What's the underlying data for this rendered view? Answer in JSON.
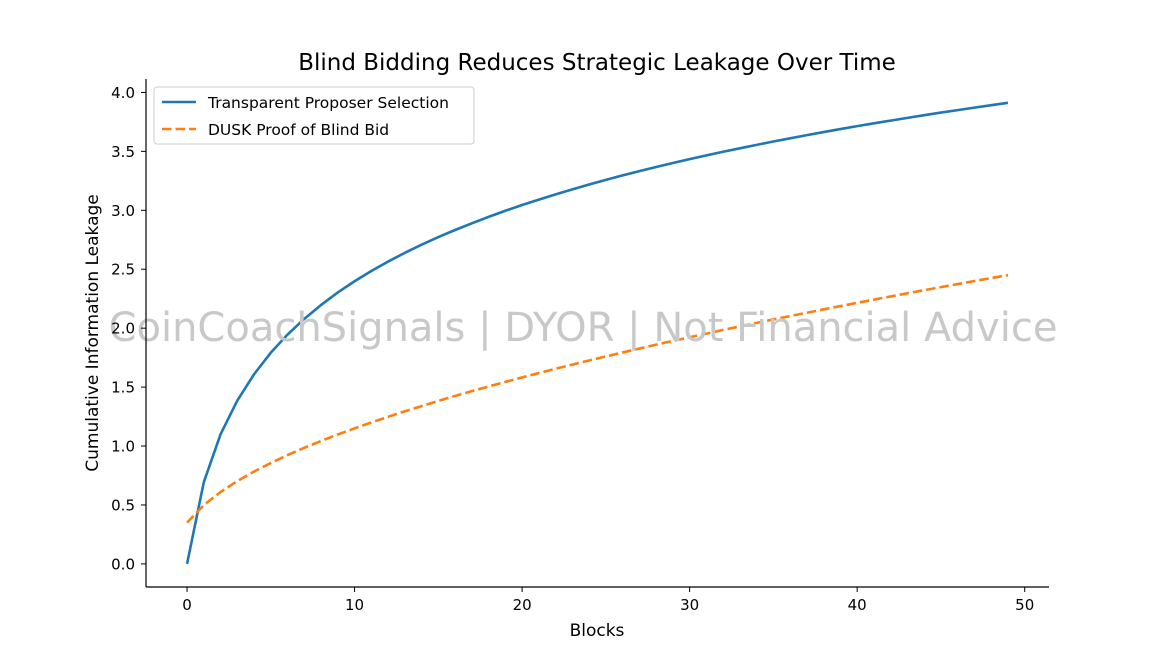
{
  "watermark": "CoinCoachSignals | DYOR | Not Financial Advice",
  "colors": {
    "series_1": "#1f77b4",
    "series_2": "#ff7f0e",
    "watermark": "#c8c8c8"
  },
  "chart_data": {
    "type": "line",
    "title": "Blind Bidding Reduces Strategic Leakage Over Time",
    "xlabel": "Blocks",
    "ylabel": "Cumulative Information Leakage",
    "xlim": [
      -2.45,
      51.45
    ],
    "ylim": [
      -0.196,
      4.114
    ],
    "xticks": [
      0,
      10,
      20,
      30,
      40,
      50
    ],
    "yticks": [
      0.0,
      0.5,
      1.0,
      1.5,
      2.0,
      2.5,
      3.0,
      3.5,
      4.0
    ],
    "grid": false,
    "legend_position": "top-left",
    "x": [
      0,
      1,
      2,
      3,
      4,
      5,
      6,
      7,
      8,
      9,
      10,
      11,
      12,
      13,
      14,
      15,
      16,
      17,
      18,
      19,
      20,
      21,
      22,
      23,
      24,
      25,
      26,
      27,
      28,
      29,
      30,
      31,
      32,
      33,
      34,
      35,
      36,
      37,
      38,
      39,
      40,
      41,
      42,
      43,
      44,
      45,
      46,
      47,
      48,
      49
    ],
    "series": [
      {
        "name": "Transparent Proposer Selection",
        "style": "solid",
        "values": [
          0.0,
          0.693,
          1.099,
          1.386,
          1.609,
          1.792,
          1.946,
          2.079,
          2.197,
          2.303,
          2.398,
          2.485,
          2.565,
          2.639,
          2.708,
          2.773,
          2.833,
          2.89,
          2.944,
          2.996,
          3.045,
          3.091,
          3.135,
          3.178,
          3.219,
          3.258,
          3.296,
          3.332,
          3.367,
          3.401,
          3.434,
          3.466,
          3.497,
          3.526,
          3.555,
          3.584,
          3.611,
          3.638,
          3.664,
          3.689,
          3.714,
          3.738,
          3.761,
          3.784,
          3.807,
          3.829,
          3.85,
          3.871,
          3.892,
          3.912
        ]
      },
      {
        "name": "DUSK Proof of Blind Bid",
        "style": "dashed",
        "values": [
          0.35,
          0.499,
          0.61,
          0.703,
          0.784,
          0.856,
          0.923,
          0.985,
          1.043,
          1.098,
          1.15,
          1.2,
          1.248,
          1.295,
          1.339,
          1.383,
          1.425,
          1.466,
          1.505,
          1.544,
          1.582,
          1.619,
          1.656,
          1.691,
          1.726,
          1.76,
          1.794,
          1.827,
          1.86,
          1.892,
          1.923,
          1.954,
          1.985,
          2.015,
          2.045,
          2.074,
          2.103,
          2.131,
          2.16,
          2.187,
          2.215,
          2.242,
          2.269,
          2.296,
          2.322,
          2.348,
          2.374,
          2.4,
          2.425,
          2.45
        ]
      }
    ]
  }
}
